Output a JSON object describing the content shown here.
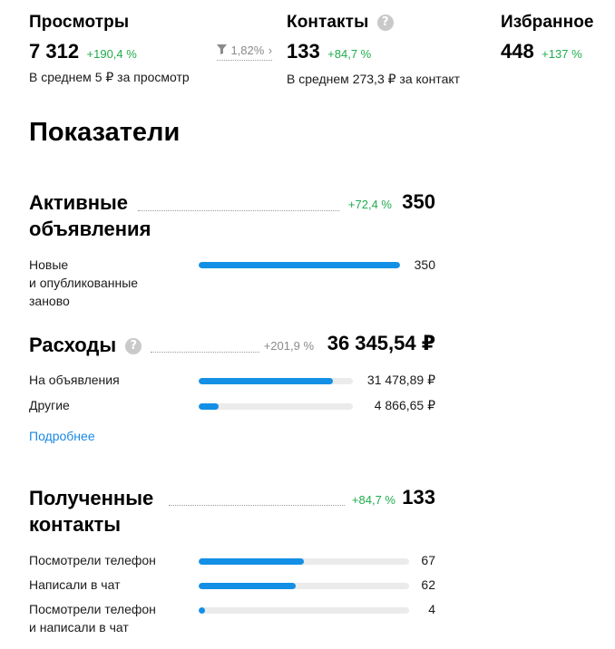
{
  "stats": {
    "views": {
      "title": "Просмотры",
      "value": "7 312",
      "delta": "+190,4 %",
      "subtitle": "В среднем 5 ₽ за просмотр",
      "conversion": "1,82%",
      "conversion_arrow": "›"
    },
    "contacts": {
      "title": "Контакты",
      "help": "?",
      "value": "133",
      "delta": "+84,7 %",
      "subtitle": "В среднем 273,3 ₽ за контакт"
    },
    "favorites": {
      "title": "Избранное",
      "value": "448",
      "delta": "+137 %"
    }
  },
  "indicators_title": "Показатели",
  "active_ads": {
    "title_line1": "Активные",
    "title_line2": "объявления",
    "delta": "+72,4 %",
    "value": "350",
    "rows": [
      {
        "label_lines": [
          "Новые",
          "и опубликованные",
          "заново"
        ],
        "value": "350",
        "fraction": 1.0
      }
    ]
  },
  "expenses": {
    "title": "Расходы",
    "help": "?",
    "delta": "+201,9 %",
    "value": "36 345,54 ₽",
    "rows": [
      {
        "label": "На объявления",
        "value": "31 478,89 ₽",
        "fraction": 0.87
      },
      {
        "label": "Другие",
        "value": "4 866,65 ₽",
        "fraction": 0.13
      }
    ],
    "more_link": "Подробнее"
  },
  "received_contacts": {
    "title_line1": "Полученные",
    "title_line2": "контакты",
    "delta": "+84,7 %",
    "value": "133",
    "rows": [
      {
        "label_lines": [
          "Посмотрели телефон"
        ],
        "value": "67",
        "fraction": 0.5
      },
      {
        "label_lines": [
          "Написали в чат"
        ],
        "value": "62",
        "fraction": 0.46
      },
      {
        "label_lines": [
          "Посмотрели телефон",
          "и написали в чат"
        ],
        "value": "4",
        "fraction": 0.03
      }
    ]
  },
  "colors": {
    "accent_blue": "#1390e5",
    "positive_green": "#1fad4d",
    "link_blue": "#1a88e6",
    "track_gray": "#ebebeb"
  },
  "icons": [
    "help-icon",
    "filter-funnel-icon",
    "chevron-right-icon"
  ]
}
